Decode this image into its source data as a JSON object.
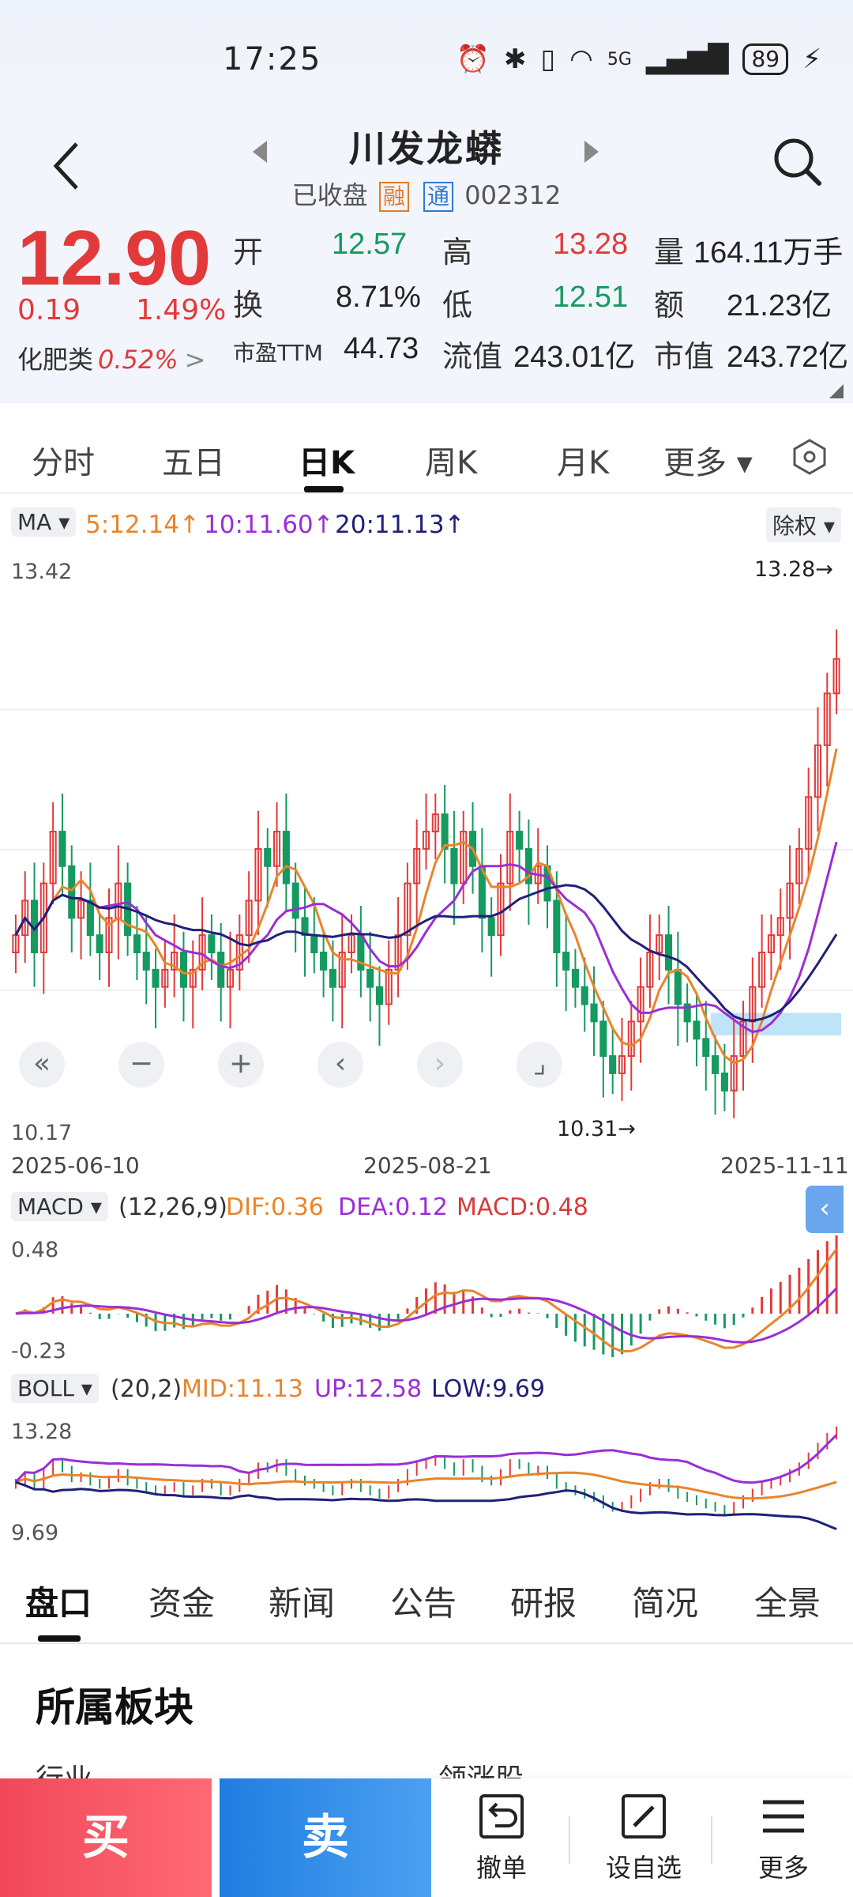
{
  "status_bar": {
    "time": "17:25",
    "signal": "5G",
    "battery": "89"
  },
  "header": {
    "title": "川发龙蟒",
    "market_status": "已收盘",
    "tag_rong": "融",
    "tag_tong": "通",
    "code": "002312"
  },
  "quote": {
    "price": "12.90",
    "change": "0.19",
    "change_pct": "1.49%",
    "sector_label": "化肥类",
    "sector_pct": "0.52%",
    "open_label": "开",
    "open": "12.57",
    "high_label": "高",
    "high": "13.28",
    "volume_label": "量",
    "volume": "164.11万手",
    "turnover_label": "换",
    "turnover": "8.71%",
    "low_label": "低",
    "low": "12.51",
    "amount_label": "额",
    "amount": "21.23亿",
    "pe_label": "市盈TTM",
    "pe": "44.73",
    "float_cap_label": "流值",
    "float_cap": "243.01亿",
    "market_cap_label": "市值",
    "market_cap": "243.72亿"
  },
  "period_tabs": [
    "分时",
    "五日",
    "日K",
    "周K",
    "月K",
    "更多 ▾"
  ],
  "ma": {
    "chip": "MA",
    "ma5": "5:12.14↑",
    "ma10": "10:11.60↑",
    "ma20": "20:11.13↑",
    "adjust": "除权"
  },
  "axis": {
    "max": "13.42",
    "min": "10.17",
    "high_mark": "13.28→",
    "low_mark": "10.31→"
  },
  "dates": [
    "2025-06-10",
    "2025-08-21",
    "2025-11-11"
  ],
  "macd": {
    "chip": "MACD",
    "params": "(12,26,9)",
    "dif": "DIF:0.36",
    "dea": "DEA:0.12",
    "macd": "MACD:0.48",
    "max": "0.48",
    "min": "-0.23"
  },
  "boll": {
    "chip": "BOLL",
    "params": "(20,2)",
    "mid": "MID:11.13",
    "up": "UP:12.58",
    "low": "LOW:9.69",
    "max": "13.28",
    "min": "9.69"
  },
  "bottom_tabs": [
    "盘口",
    "资金",
    "新闻",
    "公告",
    "研报",
    "简况",
    "全景"
  ],
  "section": {
    "title": "所属板块",
    "peek_left": "行业",
    "peek_right": "领涨股"
  },
  "actions": {
    "buy": "买",
    "sell": "卖",
    "cancel": "撤单",
    "watchlist": "设自选",
    "more": "更多"
  },
  "colors": {
    "up": "#e23a3a",
    "down": "#159a60",
    "ma5": "#e8852b",
    "ma10": "#9b2ed6",
    "ma20": "#20207a",
    "buy": "#f0485a",
    "sell": "#1f7de0"
  },
  "chart_data": {
    "type": "candlestick",
    "ylim": [
      10.17,
      13.42
    ],
    "x_ticks": [
      "2025-06-10",
      "2025-08-21",
      "2025-11-11"
    ],
    "close_series": [
      11.3,
      11.5,
      11.2,
      11.6,
      11.9,
      11.7,
      11.4,
      11.5,
      11.3,
      11.2,
      11.4,
      11.6,
      11.3,
      11.2,
      11.1,
      11.0,
      11.1,
      11.2,
      11.0,
      11.1,
      11.3,
      11.2,
      11.0,
      11.1,
      11.3,
      11.5,
      11.8,
      11.7,
      11.9,
      11.6,
      11.4,
      11.3,
      11.2,
      11.1,
      11.0,
      11.2,
      11.3,
      11.1,
      11.0,
      10.9,
      11.1,
      11.3,
      11.6,
      11.8,
      11.9,
      12.0,
      11.8,
      11.6,
      11.9,
      11.7,
      11.4,
      11.3,
      11.6,
      11.9,
      11.8,
      11.6,
      11.7,
      11.5,
      11.2,
      11.1,
      11.0,
      10.9,
      10.8,
      10.6,
      10.5,
      10.6,
      10.8,
      11.0,
      11.2,
      11.3,
      11.1,
      10.9,
      10.8,
      10.7,
      10.6,
      10.5,
      10.4,
      10.6,
      10.8,
      11.0,
      11.2,
      11.3,
      11.4,
      11.6,
      11.8,
      12.1,
      12.4,
      12.7,
      12.9
    ]
  }
}
